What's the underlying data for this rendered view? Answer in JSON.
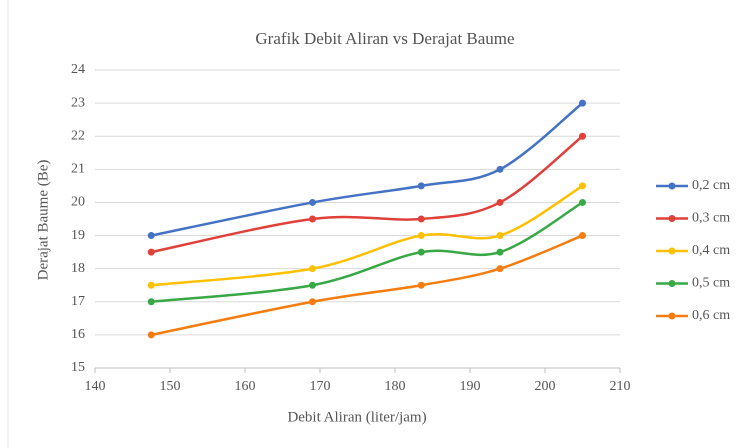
{
  "chart_data": {
    "type": "line",
    "title": "Grafik Debit Aliran vs Derajat Baume",
    "x_label": "Debit Aliran (liter/jam)",
    "y_label": "Derajat Baume (Be)",
    "x": [
      147.5,
      169,
      183.5,
      194,
      205
    ],
    "series": [
      {
        "name": "0,2 cm",
        "color": "#4472c4",
        "values": [
          19,
          20,
          20.5,
          21,
          23
        ]
      },
      {
        "name": "0,3 cm",
        "color": "#e0403a",
        "values": [
          18.5,
          19.5,
          19.5,
          20,
          22
        ]
      },
      {
        "name": "0,4 cm",
        "color": "#ffc000",
        "values": [
          17.5,
          18,
          19,
          19,
          20.5
        ]
      },
      {
        "name": "0,5 cm",
        "color": "#38a845",
        "values": [
          17,
          17.5,
          18.5,
          18.5,
          20
        ]
      },
      {
        "name": "0,6 cm",
        "color": "#f57c0f",
        "values": [
          16,
          17,
          17.5,
          18,
          19
        ]
      }
    ],
    "xlim": [
      140,
      210
    ],
    "xticks": [
      140,
      150,
      160,
      170,
      180,
      190,
      200,
      210
    ],
    "ylim": [
      15,
      24
    ],
    "yticks": [
      15,
      16,
      17,
      18,
      19,
      20,
      21,
      22,
      23,
      24
    ],
    "grid": true,
    "smooth": true,
    "legend": "right"
  }
}
